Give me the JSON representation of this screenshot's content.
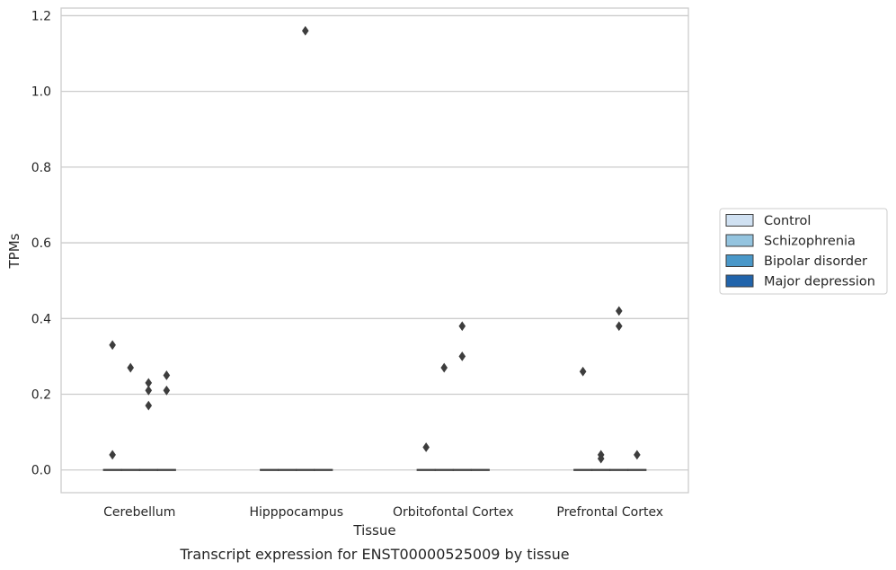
{
  "chart_data": {
    "type": "box",
    "title": "",
    "caption": "Transcript expression for ENST00000525009 by tissue",
    "xlabel": "Tissue",
    "ylabel": "TPMs",
    "categories": [
      "Cerebellum",
      "Hipppocampus",
      "Orbitofontal Cortex",
      "Prefrontal Cortex"
    ],
    "ylim": [
      -0.06,
      1.22
    ],
    "yticks": [
      0.0,
      0.2,
      0.4,
      0.6,
      0.8,
      1.0,
      1.2
    ],
    "ytick_labels": [
      "0.0",
      "0.2",
      "0.4",
      "0.6",
      "0.8",
      "1.0",
      "1.2"
    ],
    "grid": "horizontal",
    "legend_position": "right",
    "series": [
      {
        "name": "Control",
        "color": "#d0e1f2",
        "median": [
          0.0,
          0.0,
          0.0,
          0.0
        ],
        "outliers": [
          [
            0.33,
            0.04
          ],
          [],
          [
            0.06
          ],
          [
            0.26
          ]
        ]
      },
      {
        "name": "Schizophrenia",
        "color": "#94c4df",
        "median": [
          0.0,
          0.0,
          0.0,
          0.0
        ],
        "outliers": [
          [
            0.27
          ],
          [],
          [
            0.27
          ],
          [
            0.04,
            0.03
          ]
        ]
      },
      {
        "name": "Bipolar disorder",
        "color": "#4a98c9",
        "median": [
          0.0,
          0.0,
          0.0,
          0.0
        ],
        "outliers": [
          [
            0.23,
            0.21,
            0.17
          ],
          [
            1.16
          ],
          [
            0.38,
            0.3
          ],
          [
            0.42,
            0.38
          ]
        ]
      },
      {
        "name": "Major depression",
        "color": "#2164ab",
        "median": [
          0.0,
          0.0,
          0.0,
          0.0
        ],
        "outliers": [
          [
            0.25,
            0.21
          ],
          [],
          [],
          [
            0.04
          ]
        ]
      }
    ]
  }
}
